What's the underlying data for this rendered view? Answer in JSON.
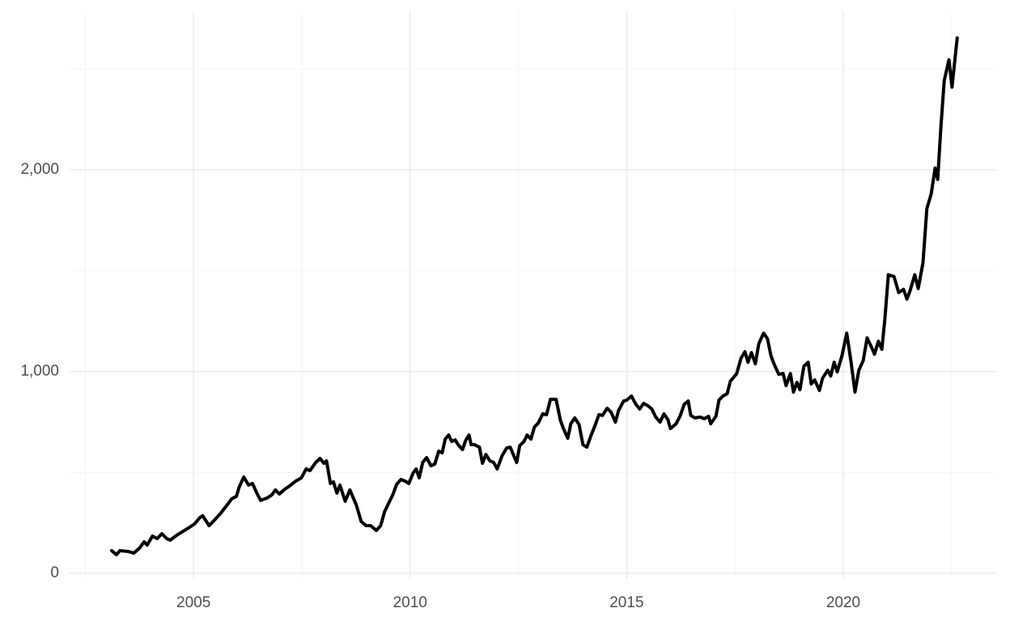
{
  "chart_data": {
    "type": "line",
    "color": "#000000",
    "grid": true,
    "xlim": [
      2002.12,
      2023.55
    ],
    "xticks": [
      2005,
      2010,
      2015,
      2020
    ],
    "xminor": [
      2002.5,
      2007.5,
      2012.5,
      2017.5,
      2022.5
    ],
    "ylim": [
      -28,
      2785
    ],
    "yticks": [
      0,
      {
        "value": 1000,
        "label": "1,000"
      },
      {
        "value": 2000,
        "label": "2,000"
      }
    ],
    "yminor": [
      500,
      1500,
      2500
    ],
    "x": [
      2003.11,
      2003.22,
      2003.3,
      2003.49,
      2003.62,
      2003.75,
      2003.86,
      2003.93,
      2004.05,
      2004.16,
      2004.27,
      2004.38,
      2004.46,
      2004.61,
      2004.76,
      2004.91,
      2005.02,
      2005.15,
      2005.21,
      2005.36,
      2005.49,
      2005.64,
      2005.77,
      2005.88,
      2005.99,
      2006.05,
      2006.16,
      2006.27,
      2006.36,
      2006.48,
      2006.55,
      2006.7,
      2006.81,
      2006.89,
      2006.98,
      2007.11,
      2007.22,
      2007.36,
      2007.49,
      2007.6,
      2007.69,
      2007.82,
      2007.92,
      2008.01,
      2008.07,
      2008.16,
      2008.23,
      2008.31,
      2008.38,
      2008.5,
      2008.61,
      2008.76,
      2008.87,
      2008.98,
      2009.09,
      2009.22,
      2009.32,
      2009.41,
      2009.5,
      2009.6,
      2009.69,
      2009.79,
      2009.88,
      2009.97,
      2010.07,
      2010.14,
      2010.21,
      2010.29,
      2010.38,
      2010.48,
      2010.57,
      2010.66,
      2010.74,
      2010.81,
      2010.89,
      2010.96,
      2011.04,
      2011.11,
      2011.21,
      2011.28,
      2011.36,
      2011.41,
      2011.49,
      2011.6,
      2011.67,
      2011.75,
      2011.84,
      2011.93,
      2012.01,
      2012.12,
      2012.23,
      2012.31,
      2012.38,
      2012.46,
      2012.53,
      2012.63,
      2012.7,
      2012.79,
      2012.87,
      2012.96,
      2013.06,
      2013.15,
      2013.24,
      2013.37,
      2013.47,
      2013.54,
      2013.64,
      2013.71,
      2013.8,
      2013.9,
      2013.99,
      2014.08,
      2014.18,
      2014.27,
      2014.36,
      2014.44,
      2014.55,
      2014.64,
      2014.74,
      2014.81,
      2014.93,
      2015.0,
      2015.11,
      2015.21,
      2015.3,
      2015.39,
      2015.49,
      2015.58,
      2015.67,
      2015.77,
      2015.86,
      2015.95,
      2016.01,
      2016.14,
      2016.23,
      2016.33,
      2016.42,
      2016.48,
      2016.57,
      2016.7,
      2016.79,
      2016.89,
      2016.94,
      2017.06,
      2017.13,
      2017.22,
      2017.32,
      2017.39,
      2017.54,
      2017.64,
      2017.73,
      2017.8,
      2017.88,
      2017.97,
      2018.05,
      2018.16,
      2018.25,
      2018.33,
      2018.4,
      2018.51,
      2018.61,
      2018.68,
      2018.78,
      2018.85,
      2018.93,
      2019.0,
      2019.09,
      2019.19,
      2019.26,
      2019.34,
      2019.45,
      2019.52,
      2019.64,
      2019.71,
      2019.79,
      2019.86,
      2019.97,
      2020.08,
      2020.18,
      2020.27,
      2020.36,
      2020.46,
      2020.55,
      2020.64,
      2020.72,
      2020.81,
      2020.89,
      2020.96,
      2021.04,
      2021.17,
      2021.28,
      2021.39,
      2021.47,
      2021.54,
      2021.65,
      2021.73,
      2021.84,
      2021.93,
      2022.03,
      2022.12,
      2022.18,
      2022.25,
      2022.33,
      2022.44,
      2022.51,
      2022.63
    ],
    "values": [
      112,
      92,
      112,
      108,
      100,
      124,
      156,
      140,
      184,
      172,
      196,
      172,
      164,
      188,
      208,
      228,
      244,
      277,
      285,
      236,
      265,
      301,
      337,
      369,
      381,
      425,
      477,
      437,
      445,
      389,
      361,
      373,
      389,
      413,
      393,
      417,
      433,
      457,
      473,
      517,
      509,
      549,
      569,
      545,
      557,
      445,
      453,
      397,
      437,
      357,
      413,
      337,
      257,
      236,
      236,
      212,
      236,
      305,
      345,
      389,
      441,
      465,
      457,
      445,
      497,
      517,
      473,
      549,
      573,
      533,
      541,
      605,
      597,
      665,
      685,
      653,
      661,
      637,
      613,
      657,
      685,
      637,
      637,
      625,
      545,
      589,
      557,
      549,
      517,
      581,
      621,
      625,
      589,
      549,
      633,
      653,
      685,
      665,
      725,
      745,
      790,
      786,
      862,
      862,
      758,
      717,
      669,
      741,
      770,
      737,
      637,
      625,
      685,
      733,
      786,
      782,
      818,
      798,
      749,
      806,
      854,
      858,
      878,
      838,
      814,
      842,
      830,
      814,
      774,
      749,
      790,
      762,
      717,
      741,
      778,
      838,
      854,
      782,
      770,
      774,
      766,
      778,
      741,
      778,
      858,
      878,
      890,
      950,
      990,
      1066,
      1098,
      1046,
      1094,
      1038,
      1138,
      1190,
      1162,
      1078,
      1038,
      986,
      990,
      930,
      990,
      898,
      946,
      910,
      1026,
      1046,
      938,
      958,
      906,
      966,
      1006,
      978,
      1046,
      998,
      1078,
      1190,
      1046,
      898,
      1006,
      1054,
      1166,
      1126,
      1086,
      1150,
      1110,
      1259,
      1479,
      1471,
      1391,
      1407,
      1359,
      1399,
      1479,
      1411,
      1539,
      1808,
      1880,
      2008,
      1952,
      2200,
      2441,
      2545,
      2409,
      2653
    ]
  }
}
